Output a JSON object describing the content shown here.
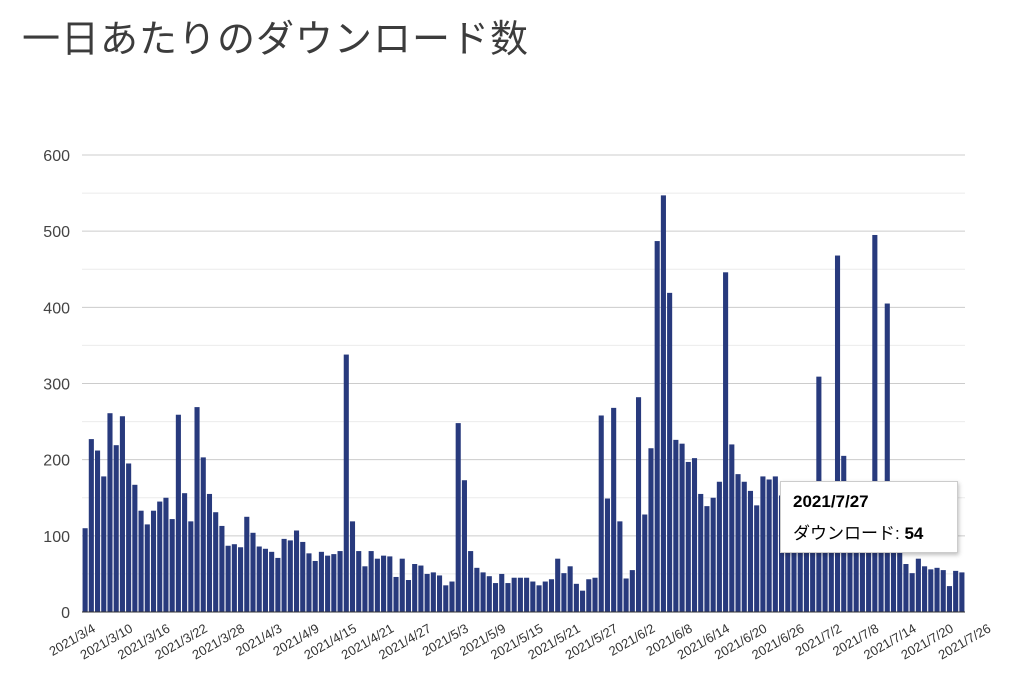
{
  "chart_data": {
    "type": "bar",
    "title": "一日あたりのダウンロード数",
    "xlabel": "",
    "ylabel": "",
    "ylim": [
      0,
      600
    ],
    "yticks": [
      0,
      100,
      200,
      300,
      400,
      500,
      600
    ],
    "grid": true,
    "series": [
      {
        "name": "ダウンロード",
        "color": "#283a7d",
        "values": [
          110,
          227,
          212,
          178,
          261,
          219,
          257,
          195,
          167,
          133,
          115,
          133,
          145,
          150,
          122,
          259,
          156,
          119,
          269,
          203,
          155,
          131,
          113,
          87,
          89,
          85,
          125,
          104,
          86,
          83,
          79,
          71,
          96,
          94,
          107,
          92,
          77,
          67,
          79,
          74,
          76,
          80,
          338,
          119,
          80,
          60,
          80,
          70,
          74,
          73,
          46,
          70,
          42,
          63,
          61,
          50,
          52,
          48,
          35,
          40,
          248,
          173,
          80,
          58,
          52,
          47,
          38,
          50,
          38,
          45,
          45,
          45,
          40,
          35,
          40,
          43,
          70,
          51,
          60,
          37,
          28,
          43,
          45,
          258,
          149,
          268,
          119,
          44,
          55,
          282,
          128,
          215,
          487,
          547,
          419,
          226,
          221,
          197,
          202,
          155,
          139,
          150,
          171,
          446,
          220,
          181,
          171,
          159,
          140,
          178,
          174,
          178,
          153,
          140,
          143,
          141,
          138,
          147,
          309,
          119,
          112,
          468,
          205,
          93,
          86,
          109,
          101,
          495,
          98,
          405,
          100,
          85,
          63,
          51,
          70,
          60,
          56,
          58,
          55,
          34,
          54,
          52
        ]
      }
    ],
    "x_tick_labels": [
      "2021/3/4",
      "2021/3/10",
      "2021/3/16",
      "2021/3/22",
      "2021/3/28",
      "2021/4/3",
      "2021/4/9",
      "2021/4/15",
      "2021/4/21",
      "2021/4/27",
      "2021/5/3",
      "2021/5/9",
      "2021/5/15",
      "2021/5/21",
      "2021/5/27",
      "2021/6/2",
      "2021/6/8",
      "2021/6/14",
      "2021/6/20",
      "2021/6/26",
      "2021/7/2",
      "2021/7/8",
      "2021/7/14",
      "2021/7/20",
      "2021/7/26"
    ],
    "tick_every": 6
  },
  "tooltip": {
    "date": "2021/7/27",
    "series_label": "ダウンロード:",
    "value": "54"
  }
}
